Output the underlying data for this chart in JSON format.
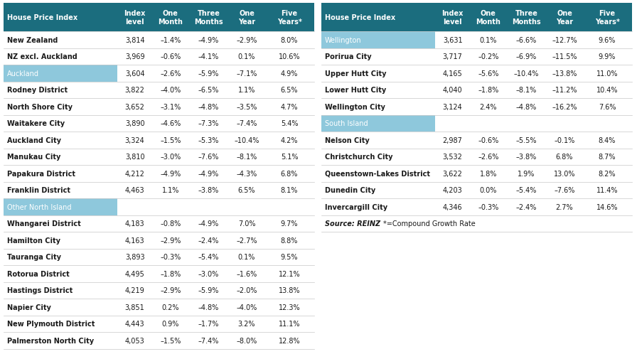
{
  "header_bg": "#1b6d7e",
  "section_bg": "#8ec8dc",
  "footer_italic": true,
  "col_headers": [
    "House Price Index",
    "Index\nlevel",
    "One\nMonth",
    "Three\nMonths",
    "One\nYear",
    "Five\nYears*"
  ],
  "left_table": {
    "rows": [
      {
        "type": "data",
        "name": "New Zealand",
        "values": [
          "3,814",
          "–1.4%",
          "–4.9%",
          "–2.9%",
          "8.0%"
        ]
      },
      {
        "type": "data",
        "name": "NZ excl. Auckland",
        "values": [
          "3,969",
          "–0.6%",
          "–4.1%",
          "0.1%",
          "10.6%"
        ]
      },
      {
        "type": "section",
        "name": "Auckland",
        "values": [
          "3,604",
          "–2.6%",
          "–5.9%",
          "–7.1%",
          "4.9%"
        ]
      },
      {
        "type": "data",
        "name": "Rodney District",
        "values": [
          "3,822",
          "–4.0%",
          "–6.5%",
          "1.1%",
          "6.5%"
        ]
      },
      {
        "type": "data",
        "name": "North Shore City",
        "values": [
          "3,652",
          "–3.1%",
          "–4.8%",
          "–3.5%",
          "4.7%"
        ]
      },
      {
        "type": "data",
        "name": "Waitakere City",
        "values": [
          "3,890",
          "–4.6%",
          "–7.3%",
          "–7.4%",
          "5.4%"
        ]
      },
      {
        "type": "data",
        "name": "Auckland City",
        "values": [
          "3,324",
          "–1.5%",
          "–5.3%",
          "–10.4%",
          "4.2%"
        ]
      },
      {
        "type": "data",
        "name": "Manukau City",
        "values": [
          "3,810",
          "–3.0%",
          "–7.6%",
          "–8.1%",
          "5.1%"
        ]
      },
      {
        "type": "data",
        "name": "Papakura District",
        "values": [
          "4,212",
          "–4.9%",
          "–4.9%",
          "–4.3%",
          "6.8%"
        ]
      },
      {
        "type": "data",
        "name": "Franklin District",
        "values": [
          "4,463",
          "1.1%",
          "–3.8%",
          "6.5%",
          "8.1%"
        ]
      },
      {
        "type": "section",
        "name": "Other North Island",
        "values": [
          "",
          "",
          "",
          "",
          ""
        ]
      },
      {
        "type": "data",
        "name": "Whangarei District",
        "values": [
          "4,183",
          "–0.8%",
          "–4.9%",
          "7.0%",
          "9.7%"
        ]
      },
      {
        "type": "data",
        "name": "Hamilton City",
        "values": [
          "4,163",
          "–2.9%",
          "–2.4%",
          "–2.7%",
          "8.8%"
        ]
      },
      {
        "type": "data",
        "name": "Tauranga City",
        "values": [
          "3,893",
          "–0.3%",
          "–5.4%",
          "0.1%",
          "9.5%"
        ]
      },
      {
        "type": "data",
        "name": "Rotorua District",
        "values": [
          "4,495",
          "–1.8%",
          "–3.0%",
          "–1.6%",
          "12.1%"
        ]
      },
      {
        "type": "data",
        "name": "Hastings District",
        "values": [
          "4,219",
          "–2.9%",
          "–5.9%",
          "–2.0%",
          "13.8%"
        ]
      },
      {
        "type": "data",
        "name": "Napier City",
        "values": [
          "3,851",
          "0.2%",
          "–4.8%",
          "–4.0%",
          "12.3%"
        ]
      },
      {
        "type": "data",
        "name": "New Plymouth District",
        "values": [
          "4,443",
          "0.9%",
          "–1.7%",
          "3.2%",
          "11.1%"
        ]
      },
      {
        "type": "data",
        "name": "Palmerston North City",
        "values": [
          "4,053",
          "–1.5%",
          "–7.4%",
          "–8.0%",
          "12.8%"
        ]
      }
    ]
  },
  "right_table": {
    "rows": [
      {
        "type": "section",
        "name": "Wellington",
        "values": [
          "3,631",
          "0.1%",
          "–6.6%",
          "–12.7%",
          "9.6%"
        ]
      },
      {
        "type": "data",
        "name": "Porirua City",
        "values": [
          "3,717",
          "–0.2%",
          "–6.9%",
          "–11.5%",
          "9.9%"
        ]
      },
      {
        "type": "data",
        "name": "Upper Hutt City",
        "values": [
          "4,165",
          "–5.6%",
          "–10.4%",
          "–13.8%",
          "11.0%"
        ]
      },
      {
        "type": "data",
        "name": "Lower Hutt City",
        "values": [
          "4,040",
          "–1.8%",
          "–8.1%",
          "–11.2%",
          "10.4%"
        ]
      },
      {
        "type": "data",
        "name": "Wellington City",
        "values": [
          "3,124",
          "2.4%",
          "–4.8%",
          "–16.2%",
          "7.6%"
        ]
      },
      {
        "type": "section",
        "name": "South Island",
        "values": [
          "",
          "",
          "",
          "",
          ""
        ]
      },
      {
        "type": "data",
        "name": "Nelson City",
        "values": [
          "2,987",
          "–0.6%",
          "–5.5%",
          "–0.1%",
          "8.4%"
        ]
      },
      {
        "type": "data",
        "name": "Christchurch City",
        "values": [
          "3,532",
          "–2.6%",
          "–3.8%",
          "6.8%",
          "8.7%"
        ]
      },
      {
        "type": "data",
        "name": "Queenstown-Lakes District",
        "values": [
          "3,622",
          "1.8%",
          "1.9%",
          "13.0%",
          "8.2%"
        ]
      },
      {
        "type": "data",
        "name": "Dunedin City",
        "values": [
          "4,203",
          "0.0%",
          "–5.4%",
          "–7.6%",
          "11.4%"
        ]
      },
      {
        "type": "data",
        "name": "Invercargill City",
        "values": [
          "4,346",
          "–0.3%",
          "–2.4%",
          "2.7%",
          "14.6%"
        ]
      },
      {
        "type": "footer",
        "name": "Source: REINZ",
        "name2": "*=Compound Growth Rate",
        "values": [
          "",
          "",
          "",
          "",
          ""
        ]
      }
    ]
  }
}
